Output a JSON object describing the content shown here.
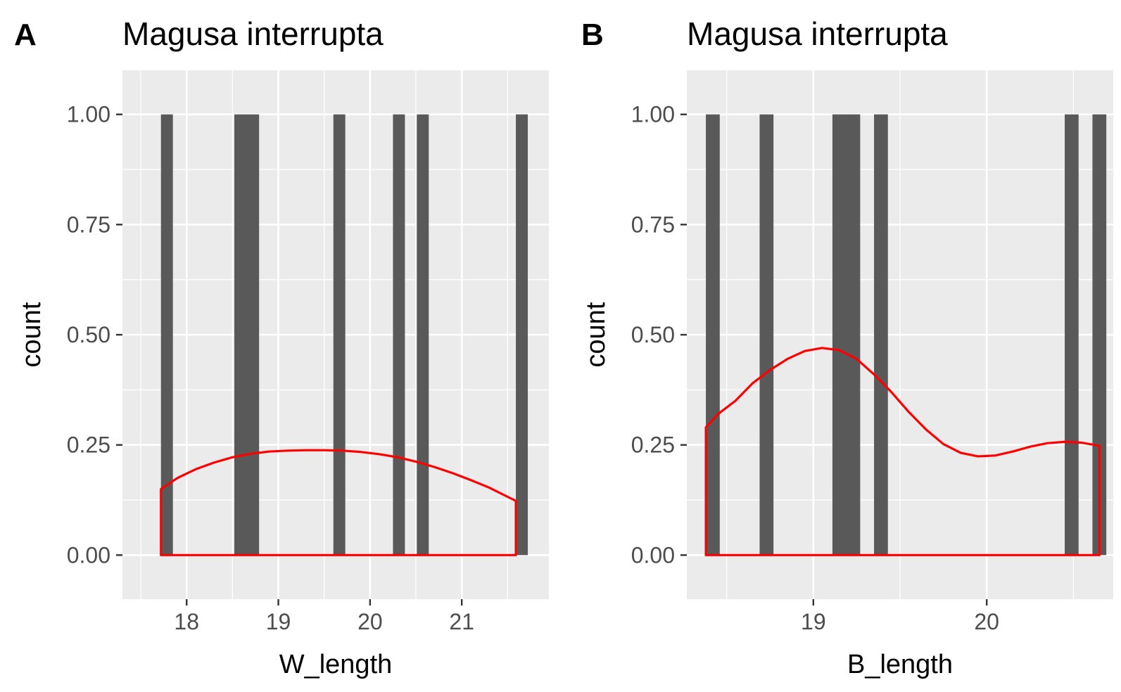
{
  "chart_data": [
    {
      "panel": "A",
      "type": "bar",
      "title": "Magusa interrupta",
      "xlabel": "W_length",
      "ylabel": "count",
      "xlim": [
        17.3,
        21.95
      ],
      "ylim": [
        -0.1,
        1.1
      ],
      "x_ticks": [
        18,
        19,
        20,
        21
      ],
      "y_ticks": [
        0,
        0.25,
        0.5,
        0.75,
        1
      ],
      "x_tick_labels": [
        "18",
        "19",
        "20",
        "21"
      ],
      "y_tick_labels": [
        "0.00",
        "0.25",
        "0.50",
        "0.75",
        "1.00"
      ],
      "bars": [
        {
          "x0": 17.72,
          "x1": 17.85,
          "count": 1
        },
        {
          "x0": 18.52,
          "x1": 18.79,
          "count": 1
        },
        {
          "x0": 19.6,
          "x1": 19.73,
          "count": 1
        },
        {
          "x0": 20.25,
          "x1": 20.38,
          "count": 1
        },
        {
          "x0": 20.51,
          "x1": 20.64,
          "count": 1
        },
        {
          "x0": 21.59,
          "x1": 21.72,
          "count": 1
        }
      ],
      "density_line": {
        "color": "#ff0000",
        "x": [
          17.72,
          17.9,
          18.1,
          18.3,
          18.5,
          18.7,
          18.9,
          19.1,
          19.3,
          19.5,
          19.7,
          19.9,
          20.1,
          20.3,
          20.5,
          20.7,
          20.9,
          21.1,
          21.3,
          21.59
        ],
        "y": [
          0.15,
          0.175,
          0.195,
          0.21,
          0.222,
          0.23,
          0.235,
          0.237,
          0.238,
          0.238,
          0.237,
          0.234,
          0.229,
          0.222,
          0.212,
          0.2,
          0.186,
          0.17,
          0.153,
          0.123
        ]
      },
      "grid": true,
      "bar_color": "#595959"
    },
    {
      "panel": "B",
      "type": "bar",
      "title": "Magusa interrupta",
      "xlabel": "B_length",
      "ylabel": "count",
      "xlim": [
        18.27,
        20.73
      ],
      "ylim": [
        -0.1,
        1.1
      ],
      "x_ticks": [
        19,
        20
      ],
      "y_ticks": [
        0,
        0.25,
        0.5,
        0.75,
        1
      ],
      "x_tick_labels": [
        "19",
        "20"
      ],
      "y_tick_labels": [
        "0.00",
        "0.25",
        "0.50",
        "0.75",
        "1.00"
      ],
      "bars": [
        {
          "x0": 18.38,
          "x1": 18.46,
          "count": 1
        },
        {
          "x0": 18.69,
          "x1": 18.77,
          "count": 1
        },
        {
          "x0": 19.11,
          "x1": 19.27,
          "count": 1
        },
        {
          "x0": 19.35,
          "x1": 19.43,
          "count": 1
        },
        {
          "x0": 20.45,
          "x1": 20.53,
          "count": 1
        },
        {
          "x0": 20.61,
          "x1": 20.69,
          "count": 1
        }
      ],
      "density_line": {
        "color": "#ff0000",
        "x": [
          18.38,
          18.45,
          18.55,
          18.65,
          18.75,
          18.85,
          18.95,
          19.05,
          19.15,
          19.25,
          19.35,
          19.45,
          19.55,
          19.65,
          19.75,
          19.85,
          19.95,
          20.05,
          20.15,
          20.25,
          20.35,
          20.45,
          20.55,
          20.65
        ],
        "y": [
          0.29,
          0.32,
          0.35,
          0.39,
          0.42,
          0.445,
          0.463,
          0.47,
          0.465,
          0.445,
          0.41,
          0.37,
          0.325,
          0.285,
          0.252,
          0.232,
          0.224,
          0.226,
          0.235,
          0.246,
          0.254,
          0.257,
          0.255,
          0.248
        ]
      },
      "grid": true,
      "bar_color": "#595959"
    }
  ]
}
